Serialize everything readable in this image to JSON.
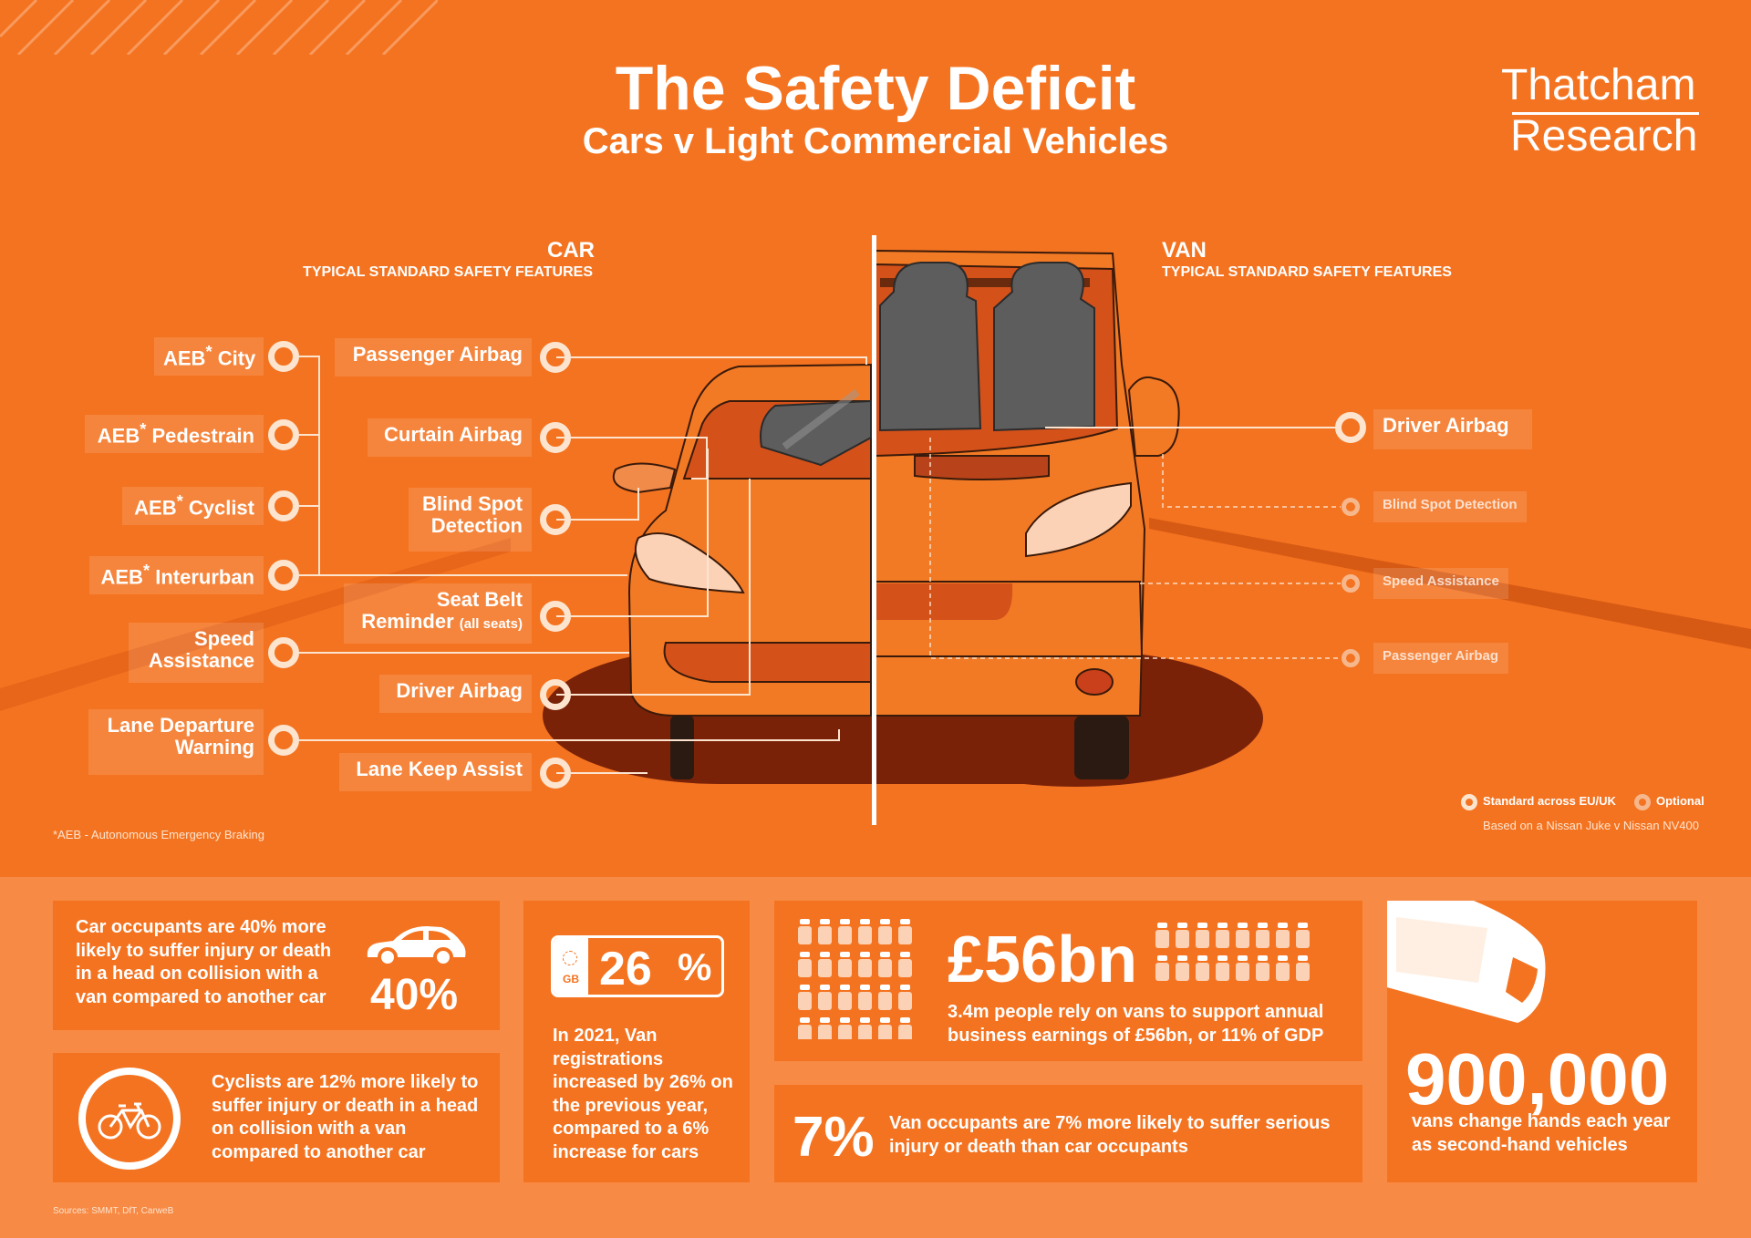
{
  "header": {
    "title": "The Safety Deficit",
    "subtitle": "Cars v Light Commercial Vehicles",
    "logo_line1": "Thatcham",
    "logo_line2": "Research"
  },
  "car_section": {
    "heading": "CAR",
    "subheading": "TYPICAL STANDARD SAFETY FEATURES",
    "left_features": [
      {
        "text": "AEB",
        "sup": "*",
        "rest": " City",
        "status": "standard"
      },
      {
        "text": "AEB",
        "sup": "*",
        "rest": " Pedestrain",
        "status": "standard"
      },
      {
        "text": "AEB",
        "sup": "*",
        "rest": " Cyclist",
        "status": "standard"
      },
      {
        "text": "AEB",
        "sup": "*",
        "rest": " Interurban",
        "status": "standard"
      },
      {
        "text": "Speed Assistance",
        "status": "standard"
      },
      {
        "text": "Lane Departure Warning",
        "status": "standard"
      }
    ],
    "right_features": [
      {
        "text": "Passenger Airbag",
        "status": "standard"
      },
      {
        "text": "Curtain Airbag",
        "status": "standard"
      },
      {
        "text": "Blind Spot Detection",
        "status": "standard"
      },
      {
        "text": "Seat Belt Reminder",
        "small": "(all seats)",
        "status": "standard"
      },
      {
        "text": "Driver Airbag",
        "status": "standard"
      },
      {
        "text": "Lane Keep Assist",
        "status": "standard"
      }
    ]
  },
  "van_section": {
    "heading": "VAN",
    "subheading": "TYPICAL STANDARD SAFETY FEATURES",
    "features": [
      {
        "text": "Driver Airbag",
        "status": "standard"
      },
      {
        "text": "Blind Spot Detection",
        "status": "optional"
      },
      {
        "text": "Speed Assistance",
        "status": "optional"
      },
      {
        "text": "Passenger Airbag",
        "status": "optional"
      }
    ]
  },
  "legend": {
    "standard": "Standard across EU/UK",
    "optional": "Optional",
    "based_on": "Based on a Nissan Juke v Nissan NV400"
  },
  "footnote": "*AEB - Autonomous Emergency Braking",
  "stats": {
    "car_occupants": {
      "text": "Car occupants are 40% more likely to suffer injury or death in a head on collision with a van compared to another car",
      "value": "40%"
    },
    "cyclists": {
      "text": "Cyclists are 12% more likely to suffer injury or death in a head on collision with a van compared to another car"
    },
    "registrations": {
      "plate_country": "GB",
      "value": "26",
      "unit": "%",
      "text": "In 2021, Van registrations increased by 26% on the previous year, compared to a 6% increase for cars"
    },
    "earnings": {
      "value": "£56bn",
      "text": "3.4m people rely on vans to support annual business earnings of £56bn, or 11% of GDP"
    },
    "van_occupants": {
      "value": "7%",
      "text": "Van occupants are 7% more likely to suffer serious injury or death than car occupants"
    },
    "second_hand": {
      "value": "900,000",
      "text": "vans change hands each year as second-hand vehicles"
    }
  },
  "sources": "Sources: SMMT, DfT, CarweB",
  "colors": {
    "background": "#f47320",
    "bottom_band": "#f78a45",
    "dot_standard": "#fde4cf",
    "dot_optional": "#f6b78c",
    "shadow": "#7a2208"
  },
  "icons": [
    "car-side-icon",
    "bicycle-icon",
    "number-plate-icon",
    "person-icon",
    "van-top-icon"
  ]
}
